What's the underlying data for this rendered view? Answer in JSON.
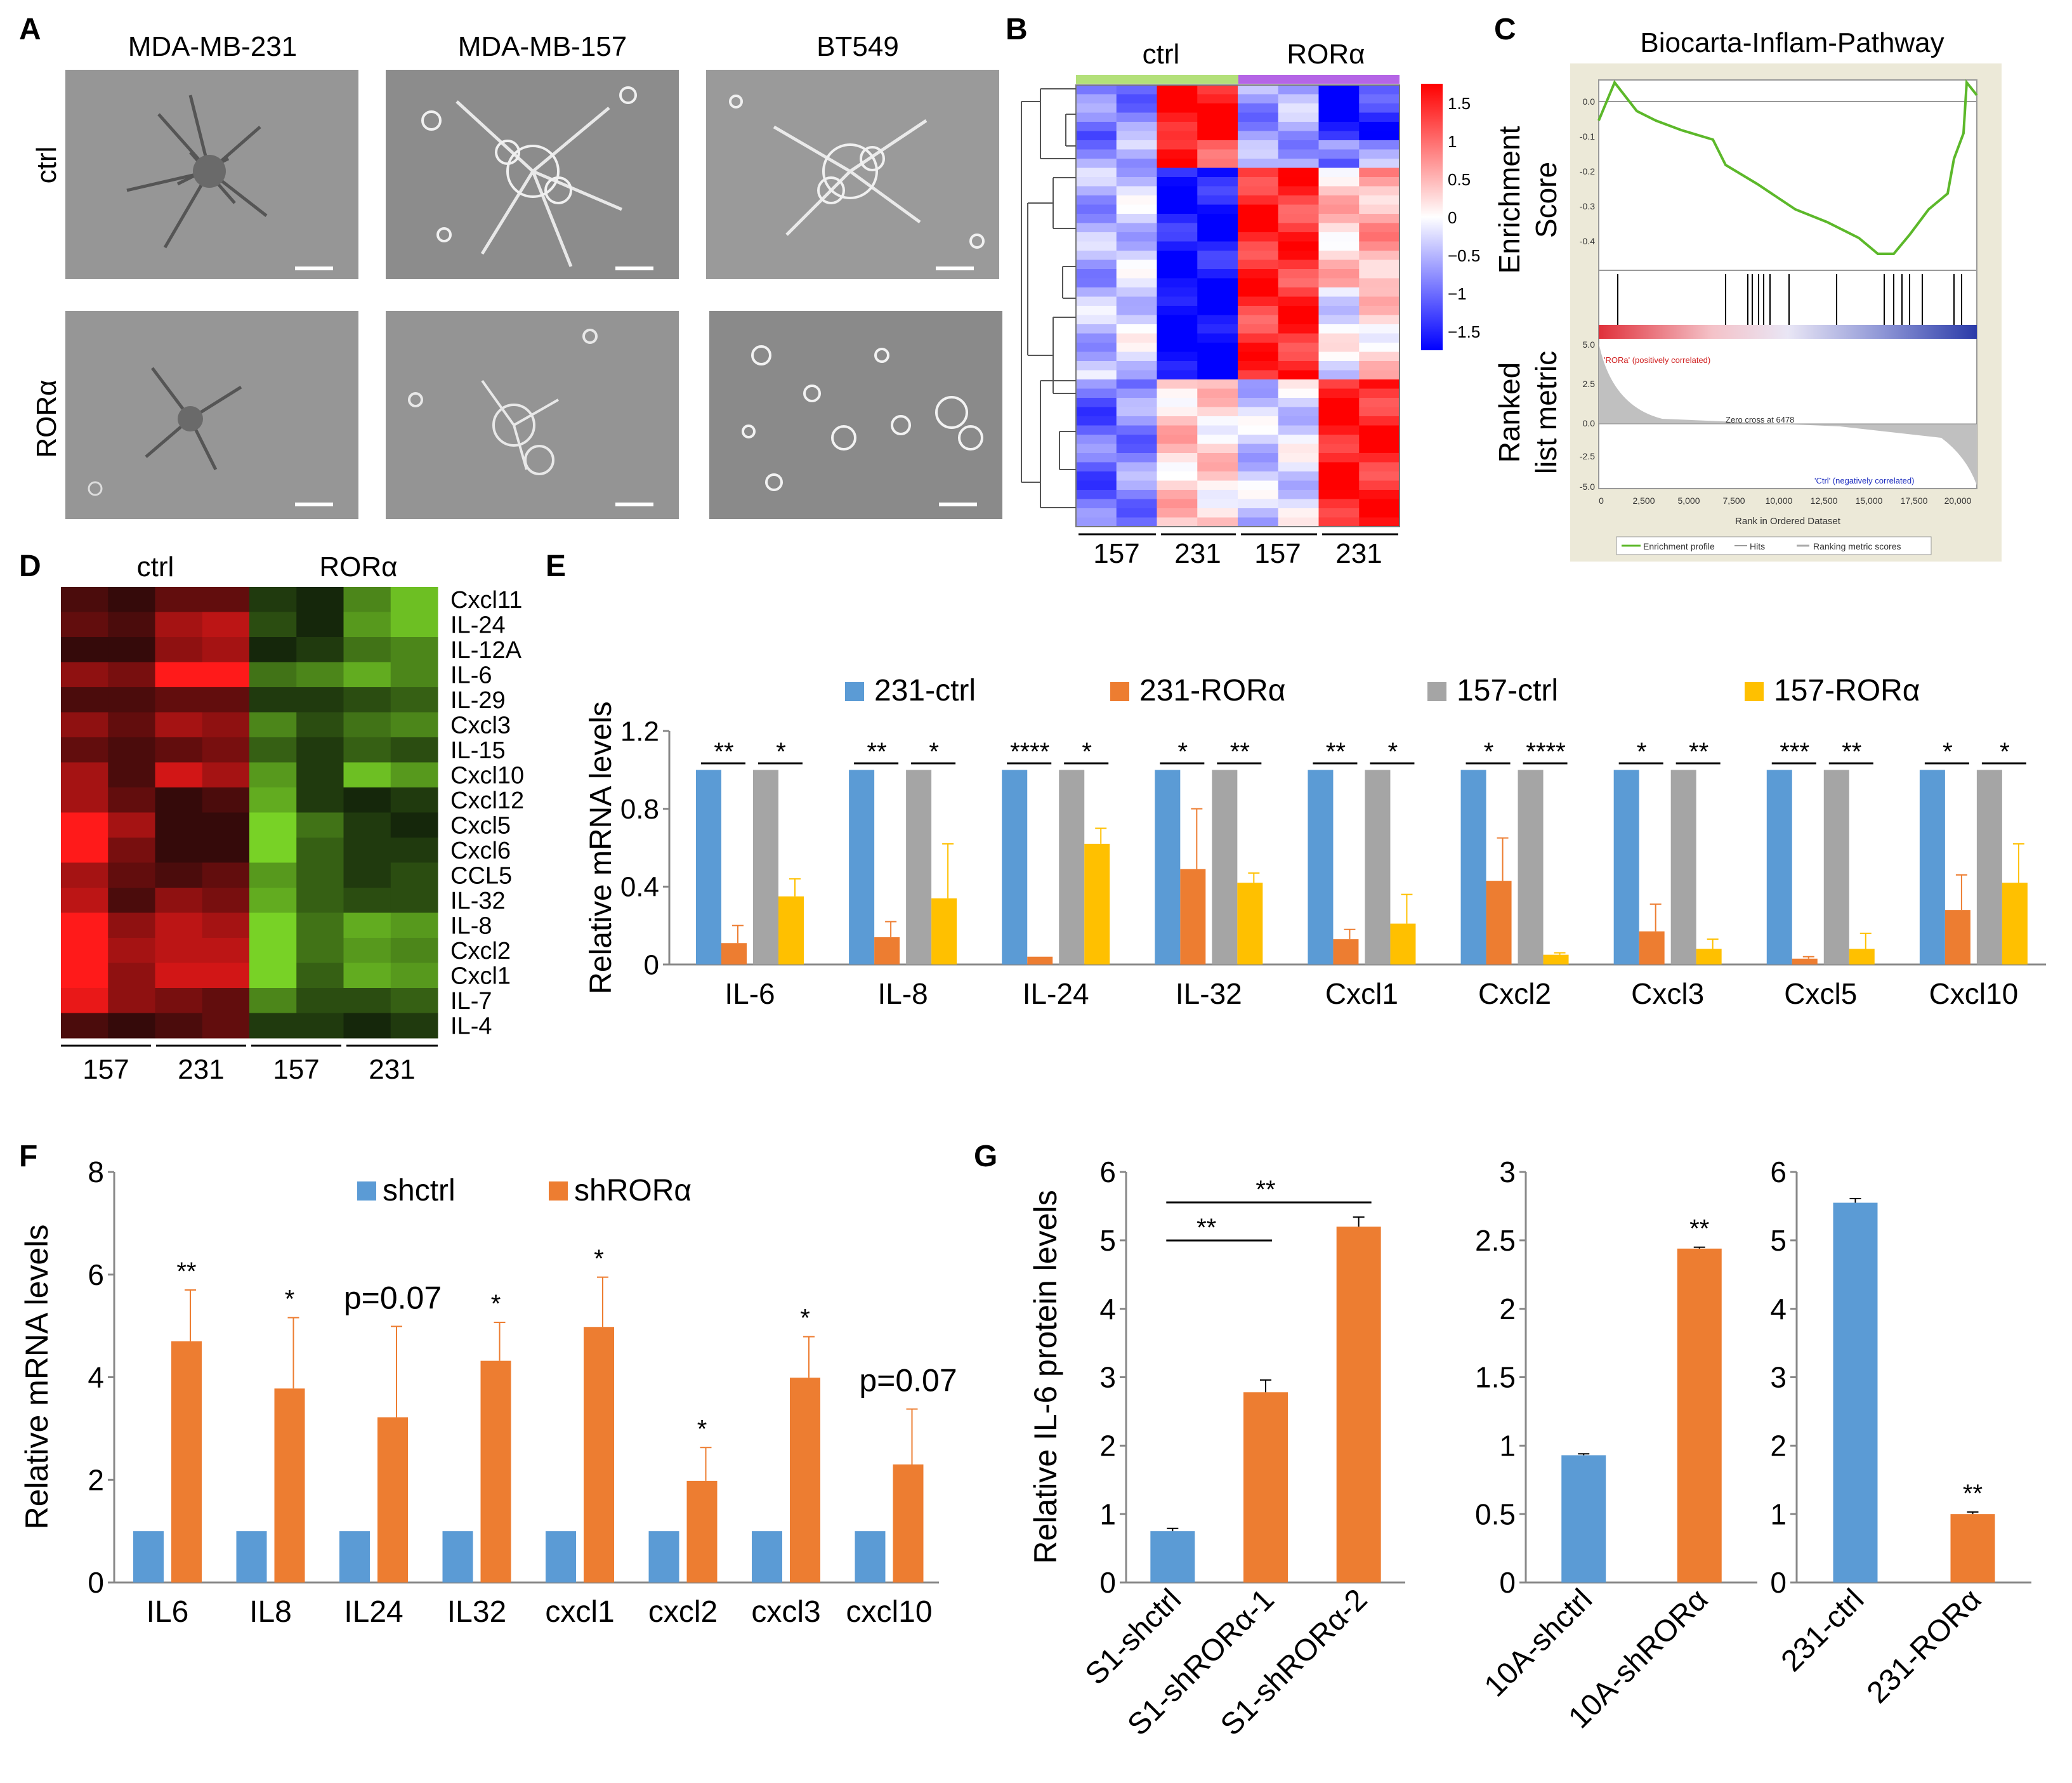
{
  "figure": {
    "panel_letters": [
      "A",
      "B",
      "C",
      "D",
      "E",
      "F",
      "G"
    ],
    "colors": {
      "blue": "#5b9bd5",
      "orange": "#ed7d31",
      "gray": "#a5a5a5",
      "yellow": "#ffc000"
    }
  },
  "panel_a": {
    "columns": [
      "MDA-MB-231",
      "MDA-MB-157",
      "BT549"
    ],
    "rows": [
      "ctrl",
      "RORα"
    ]
  },
  "panel_b": {
    "groups": [
      "ctrl",
      "RORα"
    ],
    "bottom_labels": [
      "157",
      "231",
      "157",
      "231"
    ],
    "colorbar_ticks": [
      "1.5",
      "1",
      "0.5",
      "0",
      "−0.5",
      "−1",
      "−1.5"
    ],
    "group_colors": {
      "ctrl": "#b3e07a",
      "rora": "#b565e6"
    }
  },
  "panel_c": {
    "title": "Biocarta-Inflam-Pathway",
    "top_ylabel": [
      "Enrichment",
      "Score"
    ],
    "bottom_ylabel": [
      "Ranked",
      "list metric"
    ],
    "es_ticks": [
      "0.0",
      "-0.1",
      "-0.2",
      "-0.3",
      "-0.4"
    ],
    "metric_ticks": [
      "5.0",
      "2.5",
      "0.0",
      "-2.5",
      "-5.0"
    ],
    "x_ticks": [
      "0",
      "2,500",
      "5,000",
      "7,500",
      "10,000",
      "12,500",
      "15,000",
      "17,500",
      "20,000"
    ],
    "xlabel": "Rank in Ordered Dataset",
    "pos_label": "'RORa' (positively correlated)",
    "neg_label": "'Ctrl' (negatively correlated)",
    "zero_label": "Zero cross at 6478",
    "legend": [
      "Enrichment profile",
      "Hits",
      "Ranking metric scores"
    ]
  },
  "panel_d": {
    "groups": [
      "ctrl",
      "RORα"
    ],
    "genes": [
      "Cxcl11",
      "IL-24",
      "IL-12A",
      "IL-6",
      "IL-29",
      "Cxcl3",
      "IL-15",
      "Cxcl10",
      "Cxcl12",
      "Cxcl5",
      "Cxcl6",
      "CCL5",
      "IL-32",
      "IL-8",
      "Cxcl2",
      "Cxcl1",
      "IL-7",
      "IL-4"
    ],
    "bottom_labels": [
      "157",
      "231",
      "157",
      "231"
    ]
  },
  "chart_data": [
    {
      "panel": "E",
      "type": "bar",
      "ylabel": "Relative mRNA levels",
      "ylim": [
        0,
        1.2
      ],
      "yticks": [
        "0",
        "0.4",
        "0.8",
        "1.2"
      ],
      "categories": [
        "IL-6",
        "IL-8",
        "IL-24",
        "IL-32",
        "Cxcl1",
        "Cxcl2",
        "Cxcl3",
        "Cxcl5",
        "Cxcl10"
      ],
      "series": [
        {
          "name": "231-ctrl",
          "values": [
            1,
            1,
            1,
            1,
            1,
            1,
            1,
            1,
            1
          ],
          "errors": [
            0,
            0,
            0,
            0,
            0,
            0,
            0,
            0,
            0
          ]
        },
        {
          "name": "231-RORα",
          "values": [
            0.11,
            0.14,
            0.04,
            0.49,
            0.13,
            0.43,
            0.17,
            0.03,
            0.28
          ],
          "errors": [
            0.09,
            0.08,
            0,
            0.31,
            0.05,
            0.22,
            0.14,
            0.01,
            0.18
          ]
        },
        {
          "name": "157-ctrl",
          "values": [
            1,
            1,
            1,
            1,
            1,
            1,
            1,
            1,
            1
          ],
          "errors": [
            0,
            0,
            0,
            0,
            0,
            0,
            0,
            0,
            0
          ]
        },
        {
          "name": "157-RORα",
          "values": [
            0.35,
            0.34,
            0.62,
            0.42,
            0.21,
            0.05,
            0.08,
            0.08,
            0.42
          ],
          "errors": [
            0.09,
            0.28,
            0.08,
            0.05,
            0.15,
            0.01,
            0.05,
            0.08,
            0.2
          ]
        }
      ],
      "significance": [
        [
          "**",
          "*"
        ],
        [
          "**",
          "*"
        ],
        [
          "****",
          "*"
        ],
        [
          "*",
          "**"
        ],
        [
          "**",
          "*"
        ],
        [
          "*",
          "****"
        ],
        [
          "*",
          "**"
        ],
        [
          "***",
          "**"
        ],
        [
          "*",
          "*"
        ]
      ]
    },
    {
      "panel": "F",
      "type": "bar",
      "ylabel": "Relative mRNA levels",
      "ylim": [
        0,
        8
      ],
      "yticks": [
        "0",
        "2",
        "4",
        "6",
        "8"
      ],
      "categories": [
        "IL6",
        "IL8",
        "IL24",
        "IL32",
        "cxcl1",
        "cxcl2",
        "cxcl3",
        "cxcl10"
      ],
      "series": [
        {
          "name": "shctrl",
          "values": [
            1,
            1,
            1,
            1,
            1,
            1,
            1,
            1
          ],
          "errors": [
            0,
            0,
            0,
            0,
            0,
            0,
            0,
            0
          ]
        },
        {
          "name": "shRORα",
          "values": [
            4.7,
            3.78,
            3.22,
            4.32,
            4.98,
            1.98,
            3.99,
            2.3
          ],
          "errors": [
            1.0,
            1.38,
            1.77,
            0.75,
            0.97,
            0.65,
            0.8,
            1.08
          ]
        }
      ],
      "annotations": [
        "**",
        "*",
        "p=0.07",
        "*",
        "*",
        "*",
        "*",
        "p=0.07"
      ]
    },
    {
      "panel": "G1",
      "type": "bar",
      "ylabel": "Relative IL-6 protein levels",
      "ylim": [
        0,
        6
      ],
      "yticks": [
        "0",
        "1",
        "2",
        "3",
        "4",
        "5",
        "6"
      ],
      "categories": [
        "S1-shctrl",
        "S1-shRORα-1",
        "S1-shRORα-2"
      ],
      "values": [
        0.75,
        2.78,
        5.2
      ],
      "errors": [
        0.04,
        0.18,
        0.14
      ],
      "colors": [
        "#5b9bd5",
        "#ed7d31",
        "#ed7d31"
      ],
      "significance": [
        "**",
        "**"
      ]
    },
    {
      "panel": "G2",
      "type": "bar",
      "ylim": [
        0,
        3
      ],
      "yticks": [
        "0",
        "0.5",
        "1",
        "1.5",
        "2",
        "2.5",
        "3"
      ],
      "categories": [
        "10A-shctrl",
        "10A-shRORα"
      ],
      "values": [
        0.93,
        2.44
      ],
      "errors": [
        0.01,
        0.01
      ],
      "colors": [
        "#5b9bd5",
        "#ed7d31"
      ],
      "significance": "**"
    },
    {
      "panel": "G3",
      "type": "bar",
      "ylim": [
        0,
        6
      ],
      "yticks": [
        "0",
        "1",
        "2",
        "3",
        "4",
        "5",
        "6"
      ],
      "categories": [
        "231-ctrl",
        "231-RORα"
      ],
      "values": [
        5.55,
        1.0
      ],
      "errors": [
        0.06,
        0.03
      ],
      "colors": [
        "#5b9bd5",
        "#ed7d31"
      ],
      "significance": "**"
    }
  ]
}
